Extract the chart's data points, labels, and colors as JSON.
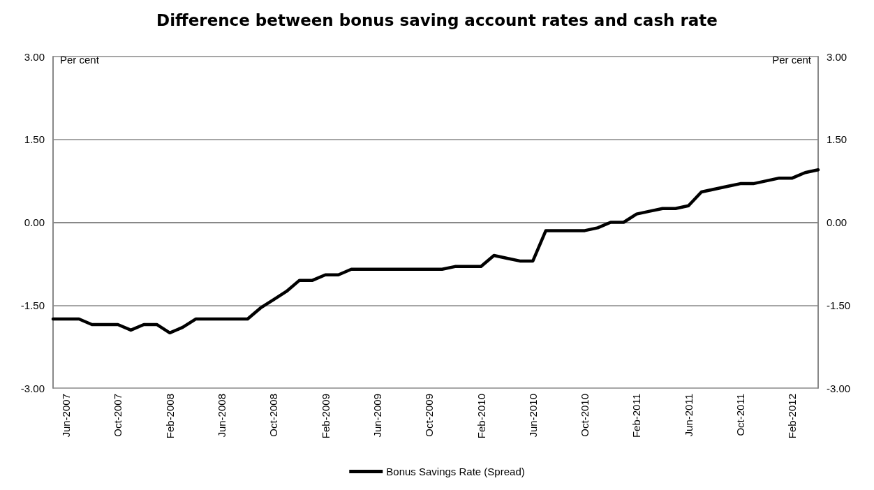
{
  "chart_data": {
    "type": "line",
    "title": "Difference between bonus saving account rates and cash rate",
    "ylabel": "Per cent",
    "y2label": "Per cent",
    "categories": [
      null,
      "Jun-2007",
      null,
      null,
      null,
      "Oct-2007",
      null,
      null,
      null,
      "Feb-2008",
      null,
      null,
      null,
      "Jun-2008",
      null,
      null,
      null,
      "Oct-2008",
      null,
      null,
      null,
      "Feb-2009",
      null,
      null,
      null,
      "Jun-2009",
      null,
      null,
      null,
      "Oct-2009",
      null,
      null,
      null,
      "Feb-2010",
      null,
      null,
      null,
      "Jun-2010",
      null,
      null,
      null,
      "Oct-2010",
      null,
      null,
      null,
      "Feb-2011",
      null,
      null,
      null,
      "Jun-2011",
      null,
      null,
      null,
      "Oct-2011",
      null,
      null,
      null,
      "Feb-2012",
      null,
      null
    ],
    "series": [
      {
        "name": "Bonus Savings Rate (Spread)",
        "color": "#000000",
        "values": [
          -1.75,
          -1.75,
          -1.75,
          -1.85,
          -1.85,
          -1.85,
          -1.95,
          -1.85,
          -1.85,
          -2.0,
          -1.9,
          -1.75,
          -1.75,
          -1.75,
          -1.75,
          -1.75,
          -1.55,
          -1.4,
          -1.25,
          -1.05,
          -1.05,
          -0.95,
          -0.95,
          -0.85,
          -0.85,
          -0.85,
          -0.85,
          -0.85,
          -0.85,
          -0.85,
          -0.85,
          -0.8,
          -0.8,
          -0.8,
          -0.6,
          -0.65,
          -0.7,
          -0.7,
          -0.15,
          -0.15,
          -0.15,
          -0.15,
          -0.1,
          0.0,
          0.0,
          0.15,
          0.2,
          0.25,
          0.25,
          0.3,
          0.55,
          0.6,
          0.65,
          0.7,
          0.7,
          0.75,
          0.8,
          0.8,
          0.9,
          0.95
        ]
      }
    ],
    "ylim": [
      -3,
      3
    ],
    "yticks": [
      {
        "value": -3,
        "label": "-3.00"
      },
      {
        "value": -1.5,
        "label": "-1.50"
      },
      {
        "value": 0,
        "label": "0.00"
      },
      {
        "value": 1.5,
        "label": "1.50"
      },
      {
        "value": 3,
        "label": "3.00"
      }
    ],
    "y2lim": [
      -3,
      3
    ],
    "y2ticks": [
      {
        "value": -3,
        "label": "-3.00"
      },
      {
        "value": -1.5,
        "label": "-1.50"
      },
      {
        "value": 0,
        "label": "0.00"
      },
      {
        "value": 1.5,
        "label": "1.50"
      },
      {
        "value": 3,
        "label": "3.00"
      }
    ],
    "grid": "y",
    "legend": "bottom",
    "marker": "none",
    "line_style": "solid"
  }
}
